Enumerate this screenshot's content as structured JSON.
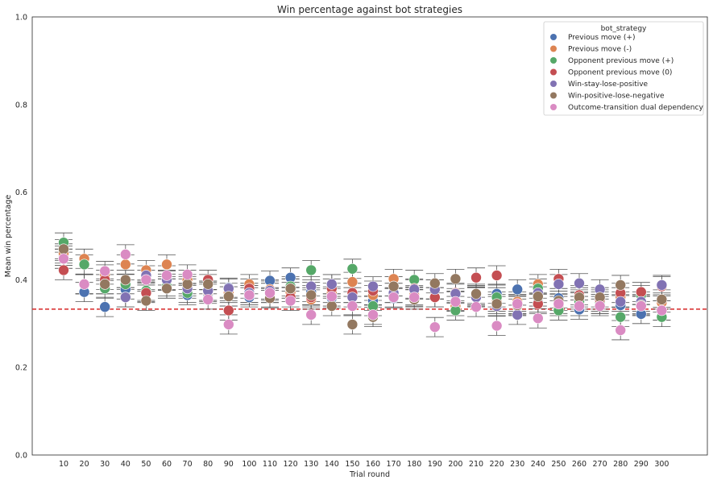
{
  "chart_data": {
    "type": "scatter",
    "title": "Win percentage against bot strategies",
    "xlabel": "Trial round",
    "ylabel": "Mean win percentage",
    "ylim": [
      0.0,
      1.0
    ],
    "yticks": [
      0.0,
      0.2,
      0.4,
      0.6,
      0.8,
      1.0
    ],
    "ytick_labels": [
      "0.0",
      "0.2",
      "0.4",
      "0.6",
      "0.8",
      "1.0"
    ],
    "categories": [
      "10",
      "20",
      "30",
      "40",
      "50",
      "60",
      "70",
      "80",
      "90",
      "100",
      "110",
      "120",
      "130",
      "140",
      "150",
      "160",
      "170",
      "180",
      "190",
      "200",
      "210",
      "220",
      "230",
      "240",
      "250",
      "260",
      "270",
      "280",
      "290",
      "300"
    ],
    "reference_line": {
      "y": 0.333,
      "color": "#d62728",
      "style": "dashed"
    },
    "legend": {
      "title": "bot_strategy",
      "placement": "top-right"
    },
    "error_bar_halfwidth": 0.022,
    "grid": false,
    "series": [
      {
        "name": "Previous move (+)",
        "color": "#4c72b0",
        "values": [
          0.455,
          0.372,
          0.338,
          0.378,
          0.372,
          0.398,
          0.365,
          0.368,
          0.382,
          0.36,
          0.398,
          0.405,
          0.372,
          0.358,
          0.37,
          0.352,
          0.358,
          0.362,
          0.378,
          0.352,
          0.362,
          0.368,
          0.378,
          0.348,
          0.358,
          0.332,
          0.345,
          0.342,
          0.322,
          0.33
        ]
      },
      {
        "name": "Previous move (-)",
        "color": "#dd8452",
        "values": [
          0.46,
          0.448,
          0.412,
          0.435,
          0.422,
          0.435,
          0.4,
          0.372,
          0.37,
          0.39,
          0.378,
          0.372,
          0.355,
          0.37,
          0.395,
          0.365,
          0.402,
          0.365,
          0.378,
          0.34,
          0.365,
          0.35,
          0.35,
          0.39,
          0.34,
          0.355,
          0.345,
          0.36,
          0.345,
          0.348
        ]
      },
      {
        "name": "Opponent previous move (+)",
        "color": "#55a868",
        "values": [
          0.485,
          0.435,
          0.38,
          0.39,
          0.375,
          0.385,
          0.37,
          0.375,
          0.362,
          0.37,
          0.36,
          0.385,
          0.422,
          0.39,
          0.425,
          0.34,
          0.385,
          0.4,
          0.36,
          0.33,
          0.365,
          0.36,
          0.34,
          0.38,
          0.33,
          0.35,
          0.35,
          0.315,
          0.365,
          0.315
        ]
      },
      {
        "name": "Opponent previous move (0)",
        "color": "#c44e52",
        "values": [
          0.422,
          0.39,
          0.4,
          0.36,
          0.37,
          0.38,
          0.385,
          0.4,
          0.33,
          0.38,
          0.37,
          0.36,
          0.36,
          0.38,
          0.37,
          0.375,
          0.37,
          0.38,
          0.36,
          0.37,
          0.405,
          0.41,
          0.345,
          0.345,
          0.402,
          0.365,
          0.355,
          0.37,
          0.372,
          0.385
        ]
      },
      {
        "name": "Win-stay-lose-positive",
        "color": "#8172b3",
        "values": [
          0.448,
          0.39,
          0.39,
          0.36,
          0.41,
          0.4,
          0.38,
          0.375,
          0.38,
          0.37,
          0.375,
          0.38,
          0.385,
          0.39,
          0.36,
          0.385,
          0.37,
          0.378,
          0.378,
          0.368,
          0.36,
          0.34,
          0.32,
          0.37,
          0.39,
          0.392,
          0.378,
          0.35,
          0.35,
          0.388
        ]
      },
      {
        "name": "Win-positive-lose-negative",
        "color": "#937860",
        "values": [
          0.47,
          0.39,
          0.39,
          0.4,
          0.352,
          0.38,
          0.39,
          0.39,
          0.362,
          0.365,
          0.358,
          0.38,
          0.365,
          0.34,
          0.298,
          0.315,
          0.385,
          0.355,
          0.392,
          0.402,
          0.368,
          0.345,
          0.342,
          0.362,
          0.352,
          0.36,
          0.36,
          0.388,
          0.342,
          0.355
        ]
      },
      {
        "name": "Outcome-transition dual dependency",
        "color": "#da8bc3",
        "values": [
          0.448,
          0.39,
          0.42,
          0.458,
          0.4,
          0.41,
          0.412,
          0.355,
          0.298,
          0.365,
          0.37,
          0.352,
          0.32,
          0.362,
          0.34,
          0.32,
          0.36,
          0.36,
          0.292,
          0.35,
          0.338,
          0.295,
          0.345,
          0.312,
          0.345,
          0.34,
          0.34,
          0.285,
          0.34,
          0.33
        ]
      }
    ]
  }
}
